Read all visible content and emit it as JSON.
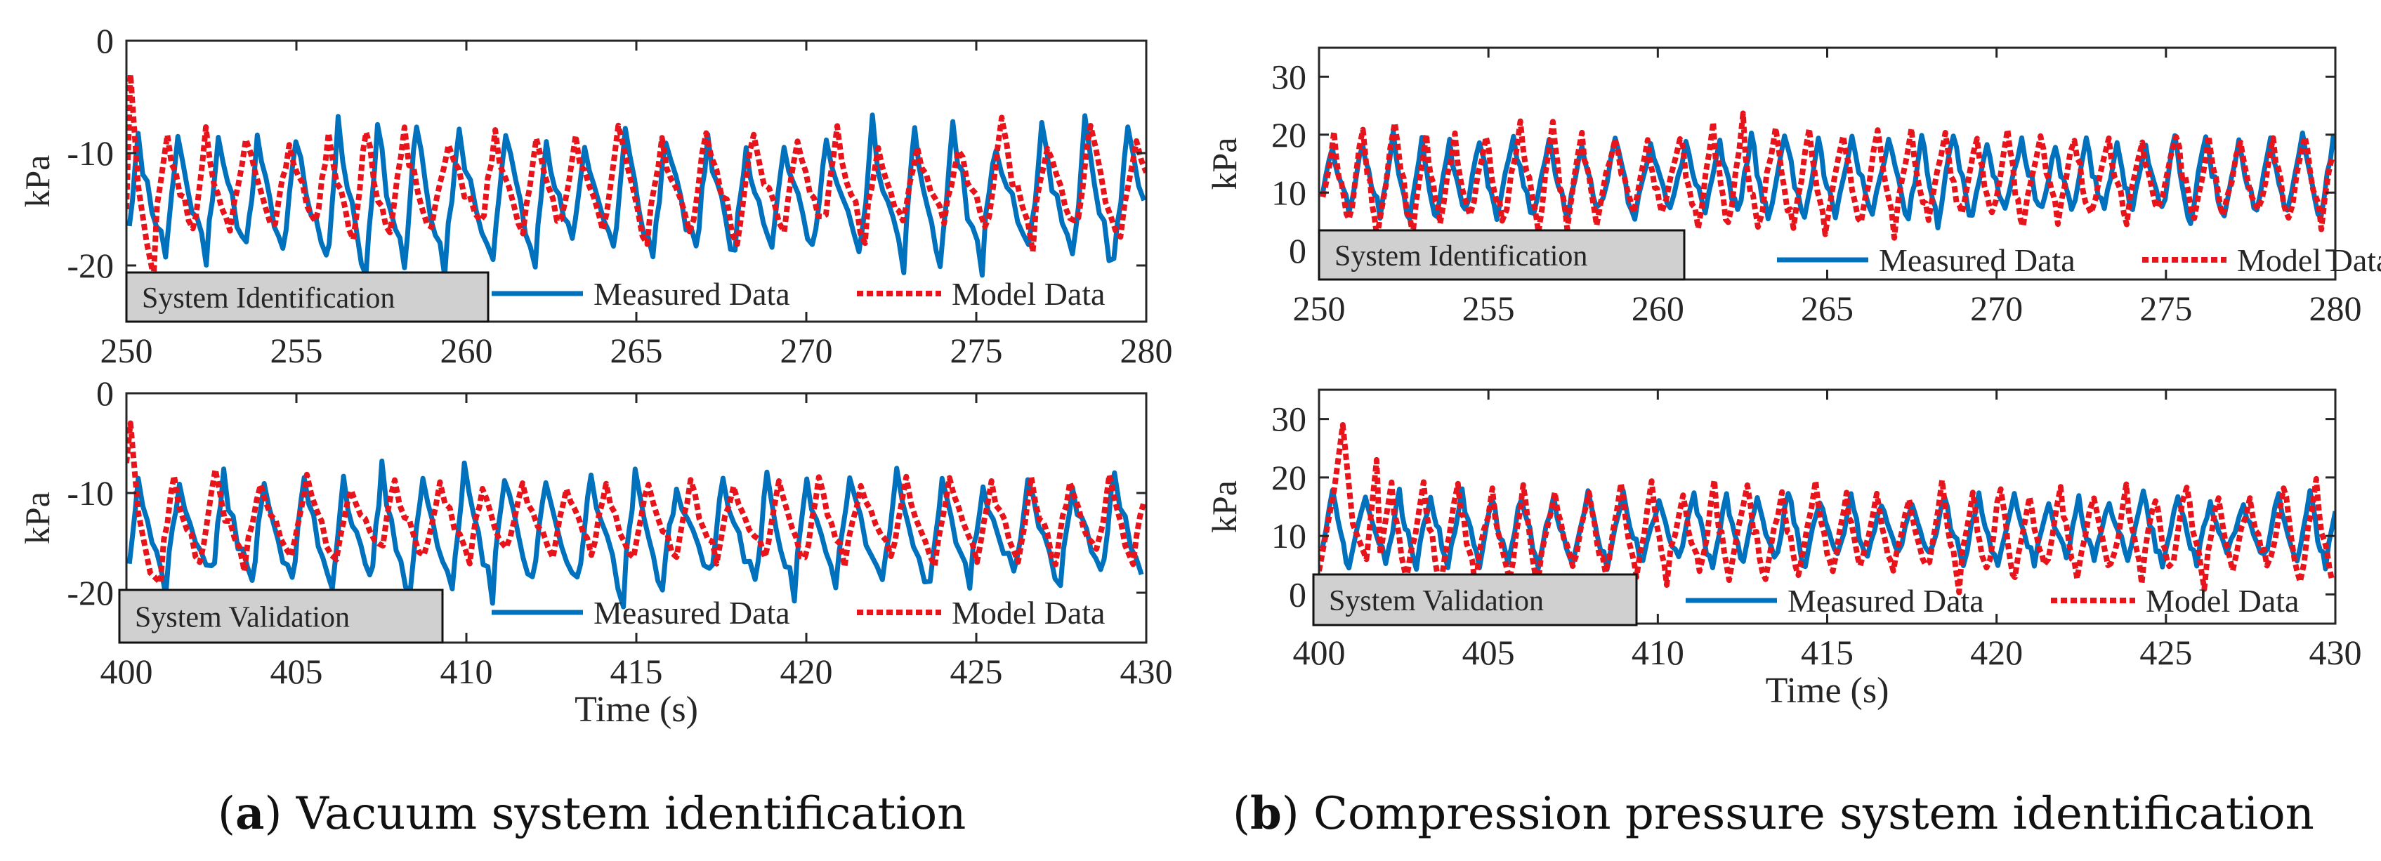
{
  "colors": {
    "measured": "#0072BD",
    "model": "#E8141B",
    "box": "#D0D0D0",
    "axis": "#262626"
  },
  "captions": [
    {
      "letter": "a",
      "text": "Vacuum system identification"
    },
    {
      "letter": "b",
      "text": "Compression pressure system identification"
    }
  ],
  "chart_data": [
    {
      "type": "line",
      "panel": "a-top",
      "annotation": "System Identification",
      "ylabel": "kPa",
      "xlabel": "",
      "xlim": [
        250,
        280
      ],
      "ylim": [
        -25,
        0
      ],
      "xticks": [
        250,
        255,
        260,
        265,
        270,
        275,
        280
      ],
      "yticks": [
        0,
        -10,
        -20
      ],
      "legend": [
        "Measured Data",
        "Model Data"
      ],
      "series": [
        {
          "name": "Measured Data",
          "base": -13.5,
          "amp": 6.0,
          "period": 1.25,
          "peak_frac": 0.3,
          "seed": 11,
          "lo": -22,
          "hi": -5
        },
        {
          "name": "Model Data",
          "base": -12.5,
          "amp": 4.5,
          "period": 1.25,
          "peak_frac": 0.35,
          "seed": 23,
          "lo": -22,
          "hi": -3,
          "start": [
            [
              250.0,
              -15
            ],
            [
              250.12,
              -3
            ],
            [
              250.35,
              -13
            ],
            [
              250.6,
              -18
            ],
            [
              250.8,
              -21
            ]
          ]
        }
      ]
    },
    {
      "type": "line",
      "panel": "a-bottom",
      "annotation": "System Validation",
      "ylabel": "kPa",
      "xlabel": "Time (s)",
      "xlim": [
        400,
        430
      ],
      "ylim": [
        -25,
        0
      ],
      "xticks": [
        400,
        405,
        410,
        415,
        420,
        425,
        430
      ],
      "yticks": [
        0,
        -10,
        -20
      ],
      "legend": [
        "Measured Data",
        "Model Data"
      ],
      "series": [
        {
          "name": "Measured Data",
          "base": -13.5,
          "amp": 5.5,
          "period": 1.25,
          "peak_frac": 0.3,
          "seed": 37,
          "lo": -21,
          "hi": -6
        },
        {
          "name": "Model Data",
          "base": -12.5,
          "amp": 4.0,
          "period": 1.25,
          "peak_frac": 0.35,
          "seed": 41,
          "lo": -21,
          "hi": -3,
          "start": [
            [
              400.0,
              -7
            ],
            [
              400.12,
              -3
            ],
            [
              400.35,
              -12
            ],
            [
              400.7,
              -18
            ],
            [
              401.0,
              -19
            ]
          ]
        }
      ]
    },
    {
      "type": "line",
      "panel": "b-top",
      "annotation": "System Identification",
      "ylabel": "kPa",
      "xlabel": "",
      "xlim": [
        250,
        280
      ],
      "ylim": [
        -5,
        35
      ],
      "xticks": [
        250,
        255,
        260,
        265,
        270,
        275,
        280
      ],
      "yticks": [
        0,
        10,
        20,
        30
      ],
      "legend": [
        "Measured Data",
        "Model Data"
      ],
      "series": [
        {
          "name": "Measured Data",
          "base": 13.0,
          "amp": 7.0,
          "period": 0.95,
          "peak_frac": 0.45,
          "seed": 53,
          "lo": 5,
          "hi": 22
        },
        {
          "name": "Model Data",
          "base": 13.0,
          "amp": 8.5,
          "period": 0.95,
          "peak_frac": 0.5,
          "seed": 67,
          "lo": 2,
          "hi": 25
        }
      ]
    },
    {
      "type": "line",
      "panel": "b-bottom",
      "annotation": "System Validation",
      "ylabel": "kPa",
      "xlabel": "Time (s)",
      "xlim": [
        400,
        430
      ],
      "ylim": [
        -5,
        35
      ],
      "xticks": [
        400,
        405,
        410,
        415,
        420,
        425,
        430
      ],
      "yticks": [
        0,
        10,
        20,
        30
      ],
      "legend": [
        "Measured Data",
        "Model Data"
      ],
      "series": [
        {
          "name": "Measured Data",
          "base": 11.5,
          "amp": 6.0,
          "period": 0.95,
          "peak_frac": 0.45,
          "seed": 71,
          "lo": 4,
          "hi": 18
        },
        {
          "name": "Model Data",
          "base": 11.0,
          "amp": 7.5,
          "period": 0.95,
          "peak_frac": 0.5,
          "seed": 83,
          "lo": 1,
          "hi": 20,
          "start": [
            [
              400.0,
              4
            ],
            [
              400.45,
              18
            ],
            [
              400.7,
              29
            ],
            [
              401.0,
              12
            ],
            [
              401.4,
              6
            ],
            [
              401.7,
              23
            ]
          ]
        }
      ]
    }
  ]
}
